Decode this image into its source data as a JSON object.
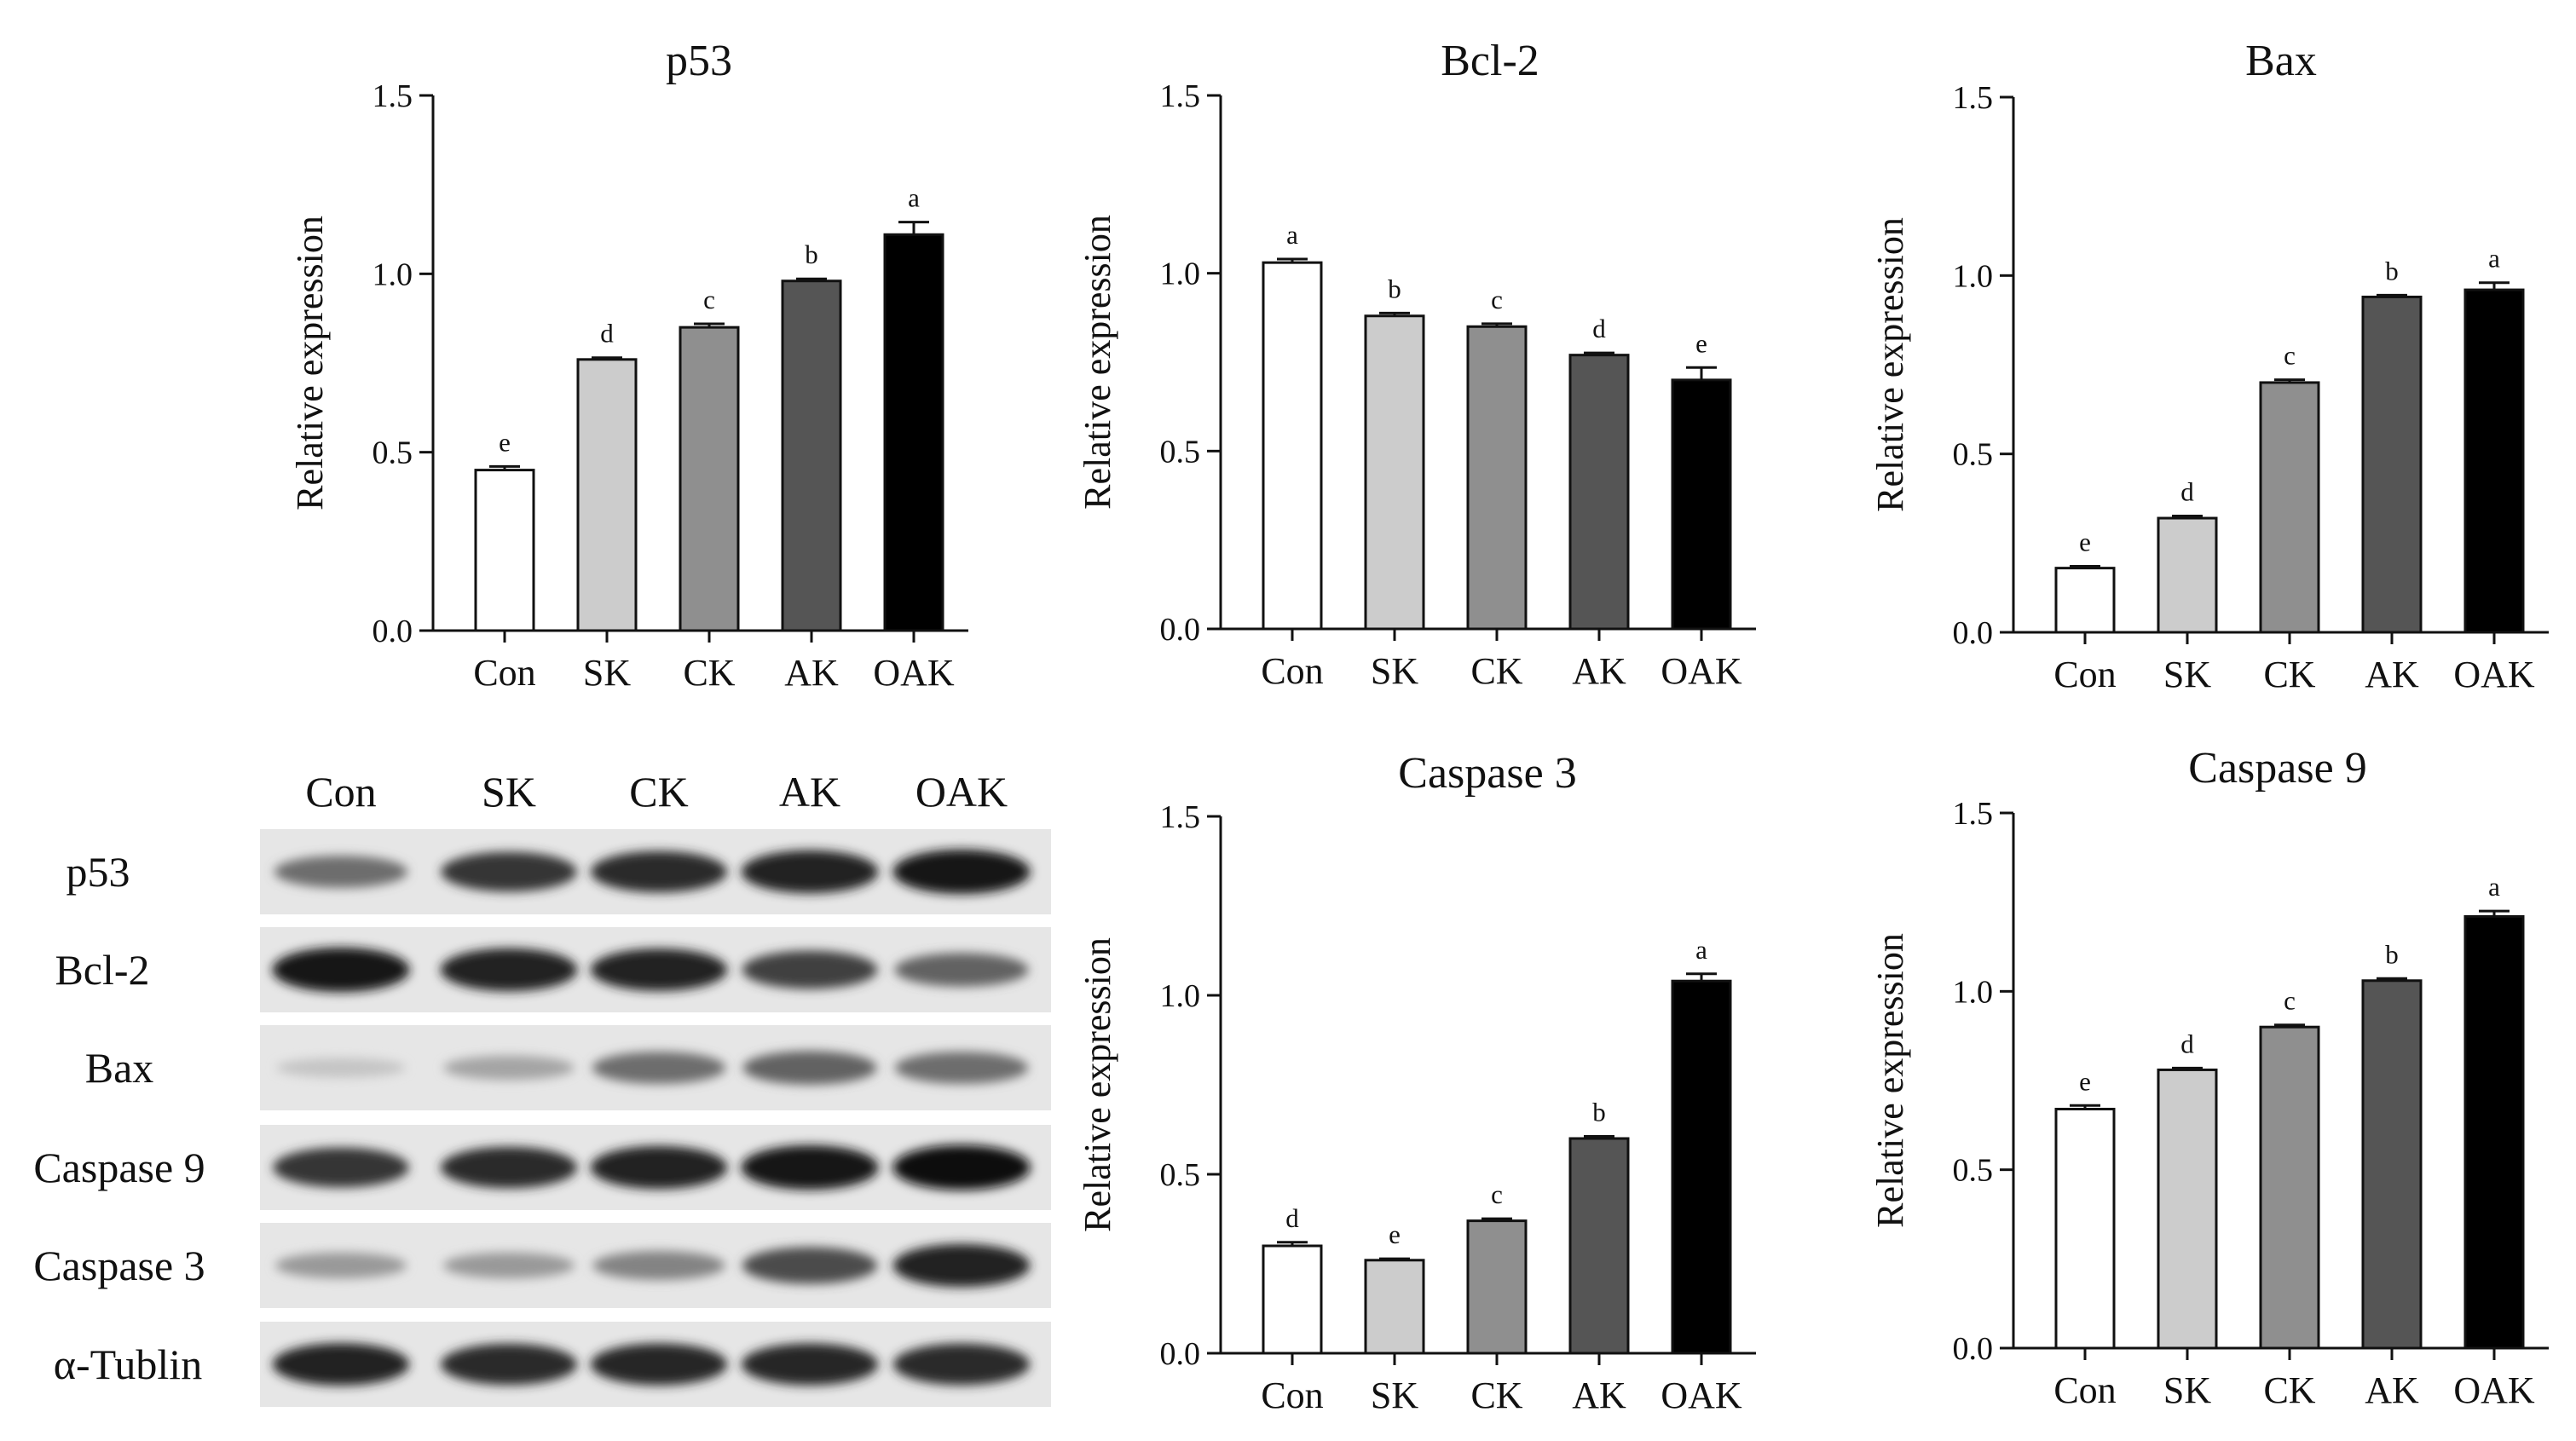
{
  "chart_data": [
    {
      "type": "bar",
      "title": "p53",
      "ylabel": "Relative expression",
      "categories": [
        "Con",
        "SK",
        "CK",
        "AK",
        "OAK"
      ],
      "values": [
        0.45,
        0.76,
        0.85,
        0.98,
        1.11
      ],
      "errors": [
        0.01,
        0.005,
        0.01,
        0.006,
        0.035
      ],
      "significance": [
        "e",
        "d",
        "c",
        "b",
        "a"
      ],
      "ylim": [
        0,
        1.5
      ],
      "yticks": [
        "0.0",
        "0.5",
        "1.0",
        "1.5"
      ],
      "colors": [
        "#ffffff",
        "#cccccc",
        "#8f8f8f",
        "#555555",
        "#000000"
      ]
    },
    {
      "type": "bar",
      "title": "Bcl-2",
      "ylabel": "Relative expression",
      "categories": [
        "Con",
        "SK",
        "CK",
        "AK",
        "OAK"
      ],
      "values": [
        1.03,
        0.88,
        0.85,
        0.77,
        0.7
      ],
      "errors": [
        0.01,
        0.008,
        0.008,
        0.006,
        0.035
      ],
      "significance": [
        "a",
        "b",
        "c",
        "d",
        "e"
      ],
      "ylim": [
        0,
        1.5
      ],
      "yticks": [
        "0.0",
        "0.5",
        "1.0",
        "1.5"
      ],
      "colors": [
        "#ffffff",
        "#cccccc",
        "#8f8f8f",
        "#555555",
        "#000000"
      ]
    },
    {
      "type": "bar",
      "title": "Bax",
      "ylabel": "Relative expression",
      "categories": [
        "Con",
        "SK",
        "CK",
        "AK",
        "OAK"
      ],
      "values": [
        0.18,
        0.32,
        0.7,
        0.94,
        0.96
      ],
      "errors": [
        0.005,
        0.006,
        0.008,
        0.005,
        0.02
      ],
      "significance": [
        "e",
        "d",
        "c",
        "b",
        "a"
      ],
      "ylim": [
        0,
        1.5
      ],
      "yticks": [
        "0.0",
        "0.5",
        "1.0",
        "1.5"
      ],
      "colors": [
        "#ffffff",
        "#cccccc",
        "#8f8f8f",
        "#555555",
        "#000000"
      ]
    },
    {
      "type": "bar",
      "title": "Caspase 3",
      "ylabel": "Relative expression",
      "categories": [
        "Con",
        "SK",
        "CK",
        "AK",
        "OAK"
      ],
      "values": [
        0.3,
        0.26,
        0.37,
        0.6,
        1.04
      ],
      "errors": [
        0.01,
        0.004,
        0.006,
        0.006,
        0.02
      ],
      "significance": [
        "d",
        "e",
        "c",
        "b",
        "a"
      ],
      "ylim": [
        0,
        1.5
      ],
      "yticks": [
        "0.0",
        "0.5",
        "1.0",
        "1.5"
      ],
      "colors": [
        "#ffffff",
        "#cccccc",
        "#8f8f8f",
        "#555555",
        "#000000"
      ]
    },
    {
      "type": "bar",
      "title": "Caspase 9",
      "ylabel": "Relative expression",
      "categories": [
        "Con",
        "SK",
        "CK",
        "AK",
        "OAK"
      ],
      "values": [
        0.67,
        0.78,
        0.9,
        1.03,
        1.21
      ],
      "errors": [
        0.01,
        0.005,
        0.006,
        0.006,
        0.015
      ],
      "significance": [
        "e",
        "d",
        "c",
        "b",
        "a"
      ],
      "ylim": [
        0,
        1.5
      ],
      "yticks": [
        "0.0",
        "0.5",
        "1.0",
        "1.5"
      ],
      "colors": [
        "#ffffff",
        "#cccccc",
        "#8f8f8f",
        "#555555",
        "#000000"
      ]
    }
  ],
  "blot": {
    "lanes": [
      "Con",
      "SK",
      "CK",
      "AK",
      "OAK"
    ],
    "rows": [
      {
        "name": "p53",
        "intensity": [
          0.55,
          0.8,
          0.85,
          0.9,
          0.95
        ]
      },
      {
        "name": "Bcl-2",
        "intensity": [
          0.95,
          0.9,
          0.88,
          0.75,
          0.6
        ]
      },
      {
        "name": "Bax",
        "intensity": [
          0.15,
          0.3,
          0.55,
          0.6,
          0.55
        ]
      },
      {
        "name": "Caspase 9",
        "intensity": [
          0.8,
          0.85,
          0.9,
          0.95,
          0.97
        ]
      },
      {
        "name": "Caspase 3",
        "intensity": [
          0.35,
          0.35,
          0.45,
          0.7,
          0.9
        ]
      },
      {
        "name": "α-Tublin",
        "intensity": [
          0.88,
          0.85,
          0.87,
          0.87,
          0.86
        ]
      }
    ]
  }
}
